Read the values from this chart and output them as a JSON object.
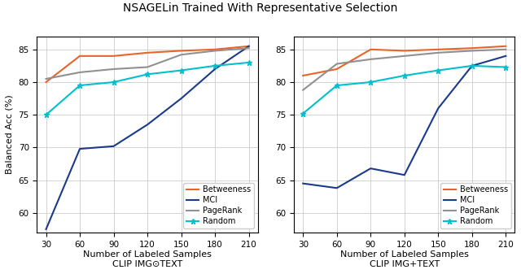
{
  "title": "NSAGELin Trained With Representative Selection",
  "xlabel": "Number of Labeled Samples",
  "ylabel": "Balanced Acc (%)",
  "x": [
    30,
    60,
    90,
    120,
    150,
    180,
    210
  ],
  "subplot1": {
    "xlabel_extra": "CLIP IMG⊙TEXT",
    "betweeness": [
      80.0,
      84.0,
      84.0,
      84.5,
      84.8,
      85.0,
      85.5
    ],
    "mci": [
      57.5,
      69.8,
      70.2,
      73.5,
      77.5,
      82.0,
      85.5
    ],
    "pagerank": [
      80.5,
      81.5,
      82.0,
      82.3,
      84.2,
      84.8,
      85.2
    ],
    "random": [
      75.0,
      79.5,
      80.0,
      81.2,
      81.8,
      82.5,
      83.0
    ]
  },
  "subplot2": {
    "xlabel_extra": "CLIP IMG+TEXT",
    "betweeness": [
      81.0,
      82.0,
      85.0,
      84.8,
      85.0,
      85.2,
      85.5
    ],
    "mci": [
      64.5,
      63.8,
      66.8,
      65.8,
      76.0,
      82.5,
      84.0
    ],
    "pagerank": [
      78.8,
      82.8,
      83.5,
      84.0,
      84.5,
      84.8,
      85.0
    ],
    "random": [
      75.2,
      79.5,
      80.0,
      81.0,
      81.8,
      82.5,
      82.3
    ]
  },
  "colors": {
    "betweeness": "#E8642A",
    "mci": "#1A3A8A",
    "pagerank": "#909090",
    "random": "#00BFCF"
  },
  "ylim": [
    57,
    87
  ],
  "yticks": [
    60,
    65,
    70,
    75,
    80,
    85
  ],
  "xticks": [
    30,
    60,
    90,
    120,
    150,
    180,
    210
  ],
  "legend_labels": [
    "Betweeness",
    "MCI",
    "PageRank",
    "Random"
  ]
}
